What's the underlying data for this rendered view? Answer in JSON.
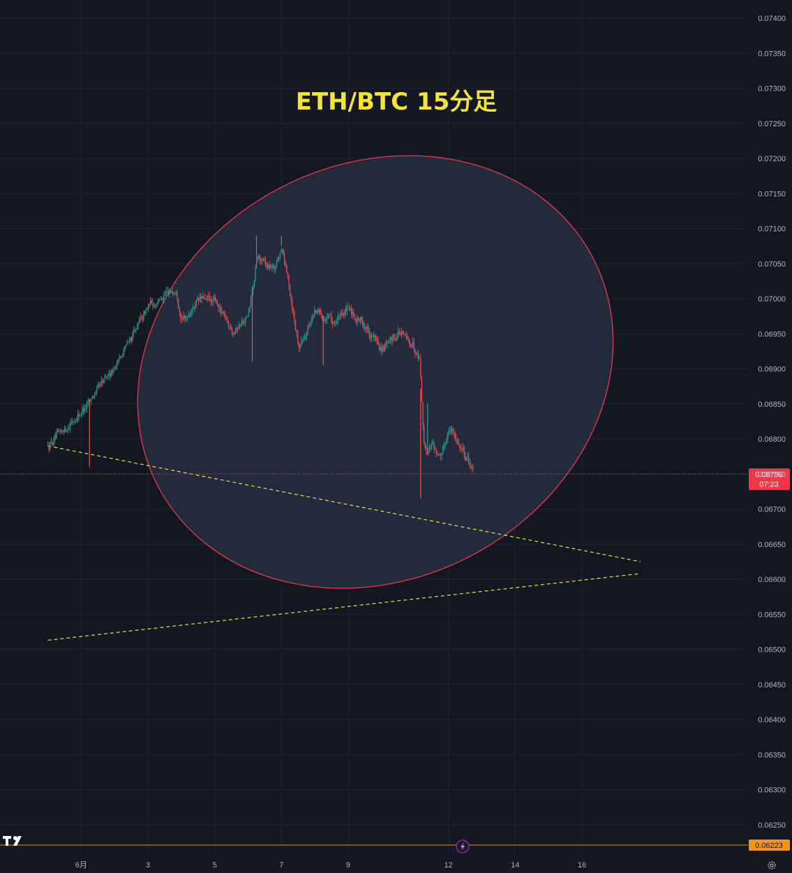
{
  "chart_data": {
    "type": "candlestick",
    "title": "ETH/BTC 15分足",
    "y_ticks": [
      "0.07400",
      "0.07350",
      "0.07300",
      "0.07250",
      "0.07200",
      "0.07150",
      "0.07100",
      "0.07050",
      "0.07000",
      "0.06950",
      "0.06900",
      "0.06850",
      "0.06800",
      "0.06750",
      "0.06700",
      "0.06650",
      "0.06600",
      "0.06550",
      "0.06500",
      "0.06450",
      "0.06400",
      "0.06350",
      "0.06300",
      "0.06250"
    ],
    "x_ticks": [
      "6月",
      "3",
      "5",
      "7",
      "9",
      "12",
      "14",
      "16"
    ],
    "ylim": [
      0.0621,
      0.07415
    ],
    "grid": true,
    "last_price": {
      "label": "0.06750",
      "countdown": "07:23",
      "value": 0.0675
    },
    "low_marker": {
      "label": "0.06223",
      "value": 0.06223
    },
    "price_path": [
      {
        "date": "May 31",
        "price": 0.0679
      },
      {
        "date": "Jun 1",
        "price": 0.0684
      },
      {
        "date": "Jun 2",
        "price": 0.06905
      },
      {
        "date": "Jun 3",
        "price": 0.0699
      },
      {
        "date": "Jun 3 20:00",
        "price": 0.07015
      },
      {
        "date": "Jun 4",
        "price": 0.06965
      },
      {
        "date": "Jun 4 12:00",
        "price": 0.07
      },
      {
        "date": "Jun 5",
        "price": 0.06995
      },
      {
        "date": "Jun 5 12:00",
        "price": 0.06955
      },
      {
        "date": "Jun 6",
        "price": 0.06975
      },
      {
        "date": "Jun 6 06:00",
        "price": 0.0706
      },
      {
        "date": "Jun 6 18:00",
        "price": 0.0704
      },
      {
        "date": "Jun 7",
        "price": 0.07075
      },
      {
        "date": "Jun 7 12:00",
        "price": 0.0693
      },
      {
        "date": "Jun 8",
        "price": 0.06985
      },
      {
        "date": "Jun 8 12:00",
        "price": 0.06965
      },
      {
        "date": "Jun 9",
        "price": 0.06985
      },
      {
        "date": "Jun 9 12:00",
        "price": 0.0696
      },
      {
        "date": "Jun 10",
        "price": 0.06925
      },
      {
        "date": "Jun 10 12:00",
        "price": 0.06955
      },
      {
        "date": "Jun 11 03:00",
        "price": 0.0692
      },
      {
        "date": "Jun 11 06:00",
        "price": 0.06775
      },
      {
        "date": "Jun 11 12:00",
        "price": 0.06795
      },
      {
        "date": "Jun 11 18:00",
        "price": 0.0677
      },
      {
        "date": "Jun 12",
        "price": 0.0682
      },
      {
        "date": "Jun 12 12:00",
        "price": 0.06775
      },
      {
        "date": "Jun 12 18:00",
        "price": 0.0675
      }
    ],
    "wicks": [
      {
        "date": "Jun 1 06:00",
        "low": 0.0676
      },
      {
        "date": "Jun 6 03:00",
        "low": 0.0691
      },
      {
        "date": "Jun 6 06:00",
        "high": 0.0709
      },
      {
        "date": "Jun 7",
        "high": 0.0709
      },
      {
        "date": "Jun 8 06:00",
        "low": 0.06905
      },
      {
        "date": "Jun 11 04:00",
        "low": 0.06715
      },
      {
        "date": "Jun 11 09:00",
        "high": 0.0685
      }
    ],
    "trendlines": [
      {
        "from": {
          "date": "May 31",
          "price": 0.0679
        },
        "to": {
          "date": "Jun 17 18:00",
          "price": 0.06625
        },
        "color": "#f5e33a",
        "style": "dashed"
      },
      {
        "from": {
          "date": "May 31",
          "price": 0.06513
        },
        "to": {
          "date": "Jun 17 18:00",
          "price": 0.06608
        },
        "color": "#f5e33a",
        "style": "dashed"
      }
    ],
    "highlight_ellipse": {
      "stroke": "#f23645",
      "fill": "#2a3245"
    },
    "colors": {
      "up": "#26a69a",
      "down": "#ef5350",
      "background": "#131722",
      "grid": "#1f2430",
      "last_price_badge": "#f23645",
      "low_marker": "#f7931a"
    }
  },
  "icons": {
    "logo": "tradingview-logo-icon",
    "replay": "lightning-icon",
    "settings": "gear-icon"
  }
}
